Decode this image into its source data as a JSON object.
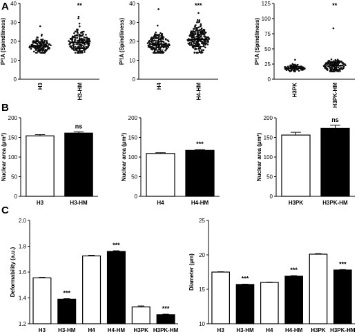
{
  "panel_labels": [
    "A",
    "B",
    "C"
  ],
  "chart_data": [
    {
      "type": "scatter",
      "panel": "A",
      "categories": [
        "H3",
        "H3-HM"
      ],
      "ylabel": "P²/A (Spindliness)",
      "ylim": [
        0,
        40
      ],
      "yticks": [
        0,
        10,
        20,
        30,
        40
      ],
      "series": [
        {
          "category": "H3",
          "mean": 17.5,
          "sd": 2.3,
          "min": 14,
          "max": 28,
          "n": 150
        },
        {
          "category": "H3-HM",
          "mean": 19.5,
          "sd": 3.3,
          "min": 14,
          "max": 33,
          "n": 180
        }
      ],
      "annotations": [
        {
          "category": "H3-HM",
          "text": "**"
        }
      ]
    },
    {
      "type": "scatter",
      "panel": "A",
      "categories": [
        "H4",
        "H4-HM"
      ],
      "ylabel": "P²/A (Spindliness)",
      "ylim": [
        0,
        40
      ],
      "yticks": [
        0,
        10,
        20,
        30,
        40
      ],
      "series": [
        {
          "category": "H4",
          "mean": 18.5,
          "sd": 3.0,
          "min": 14,
          "max": 37,
          "n": 190
        },
        {
          "category": "H4-HM",
          "mean": 21.0,
          "sd": 3.8,
          "min": 14,
          "max": 35,
          "n": 230
        }
      ],
      "annotations": [
        {
          "category": "H4-HM",
          "text": "***"
        }
      ]
    },
    {
      "type": "scatter",
      "panel": "A",
      "categories": [
        "H3PK",
        "H3PK-HM"
      ],
      "ylabel": "P²/A (Spindliness)",
      "ylim": [
        0,
        125
      ],
      "yticks": [
        0,
        25,
        50,
        75,
        100,
        125
      ],
      "series": [
        {
          "category": "H3PK",
          "mean": 18,
          "sd": 3,
          "min": 13,
          "max": 32,
          "n": 90
        },
        {
          "category": "H3PK-HM",
          "mean": 22,
          "sd": 6,
          "min": 13,
          "max": 84,
          "n": 150
        }
      ],
      "annotations": [
        {
          "category": "H3PK-HM",
          "text": "**"
        }
      ]
    },
    {
      "type": "bar",
      "panel": "B",
      "categories": [
        "H3",
        "H3-HM"
      ],
      "values": [
        154,
        161
      ],
      "errors": [
        3,
        3
      ],
      "fills": [
        "white",
        "black"
      ],
      "ylabel": "Nuclear area (μm²)",
      "ylim": [
        0,
        200
      ],
      "yticks": [
        0,
        50,
        100,
        150,
        200
      ],
      "annotations": [
        {
          "category": "H3-HM",
          "text": "ns"
        }
      ]
    },
    {
      "type": "bar",
      "panel": "B",
      "categories": [
        "H4",
        "H4-HM"
      ],
      "values": [
        109,
        117
      ],
      "errors": [
        2,
        2
      ],
      "fills": [
        "white",
        "black"
      ],
      "ylabel": "Nuclear area (μm²)",
      "ylim": [
        0,
        200
      ],
      "yticks": [
        0,
        50,
        100,
        150,
        200
      ],
      "annotations": [
        {
          "category": "H4-HM",
          "text": "***"
        }
      ]
    },
    {
      "type": "bar",
      "panel": "B",
      "categories": [
        "H3PK",
        "H3PK-HM"
      ],
      "values": [
        156,
        173
      ],
      "errors": [
        7,
        8
      ],
      "fills": [
        "white",
        "black"
      ],
      "ylabel": "Nuclear area (μm²)",
      "ylim": [
        0,
        200
      ],
      "yticks": [
        0,
        50,
        100,
        150,
        200
      ],
      "annotations": [
        {
          "category": "H3PK-HM",
          "text": "ns"
        }
      ]
    },
    {
      "type": "bar",
      "panel": "C",
      "categories": [
        "H3",
        "H3-HM",
        "H4",
        "H4-HM",
        "H3PK",
        "H3PK-HM"
      ],
      "values": [
        1.555,
        1.39,
        1.725,
        1.76,
        1.33,
        1.27
      ],
      "errors": [
        0.004,
        0.004,
        0.005,
        0.005,
        0.008,
        0.004
      ],
      "fills": [
        "white",
        "black",
        "white",
        "black",
        "white",
        "black"
      ],
      "ylabel": "Deformability (a.u.)",
      "ylim": [
        1.2,
        2.0
      ],
      "yticks": [
        1.2,
        1.4,
        1.6,
        1.8,
        2.0
      ],
      "ytick_labels": [
        "1.2",
        "1.4",
        "1.6",
        "1.8",
        "2.0"
      ],
      "annotations": [
        {
          "category": "H3-HM",
          "text": "***"
        },
        {
          "category": "H4-HM",
          "text": "***"
        },
        {
          "category": "H3PK-HM",
          "text": "***"
        }
      ]
    },
    {
      "type": "bar",
      "panel": "C",
      "categories": [
        "H3",
        "H3-HM",
        "H4",
        "H4-HM",
        "H3PK",
        "H3PK-HM"
      ],
      "values": [
        17.5,
        15.7,
        16.0,
        16.9,
        20.1,
        17.8
      ],
      "errors": [
        0.05,
        0.05,
        0.05,
        0.08,
        0.08,
        0.06
      ],
      "fills": [
        "white",
        "black",
        "white",
        "black",
        "white",
        "black"
      ],
      "ylabel": "Diameter (μm)",
      "ylim": [
        10,
        25
      ],
      "yticks": [
        10,
        15,
        20,
        25
      ],
      "annotations": [
        {
          "category": "H3-HM",
          "text": "***"
        },
        {
          "category": "H4-HM",
          "text": "***"
        },
        {
          "category": "H3PK-HM",
          "text": "***"
        }
      ]
    }
  ]
}
